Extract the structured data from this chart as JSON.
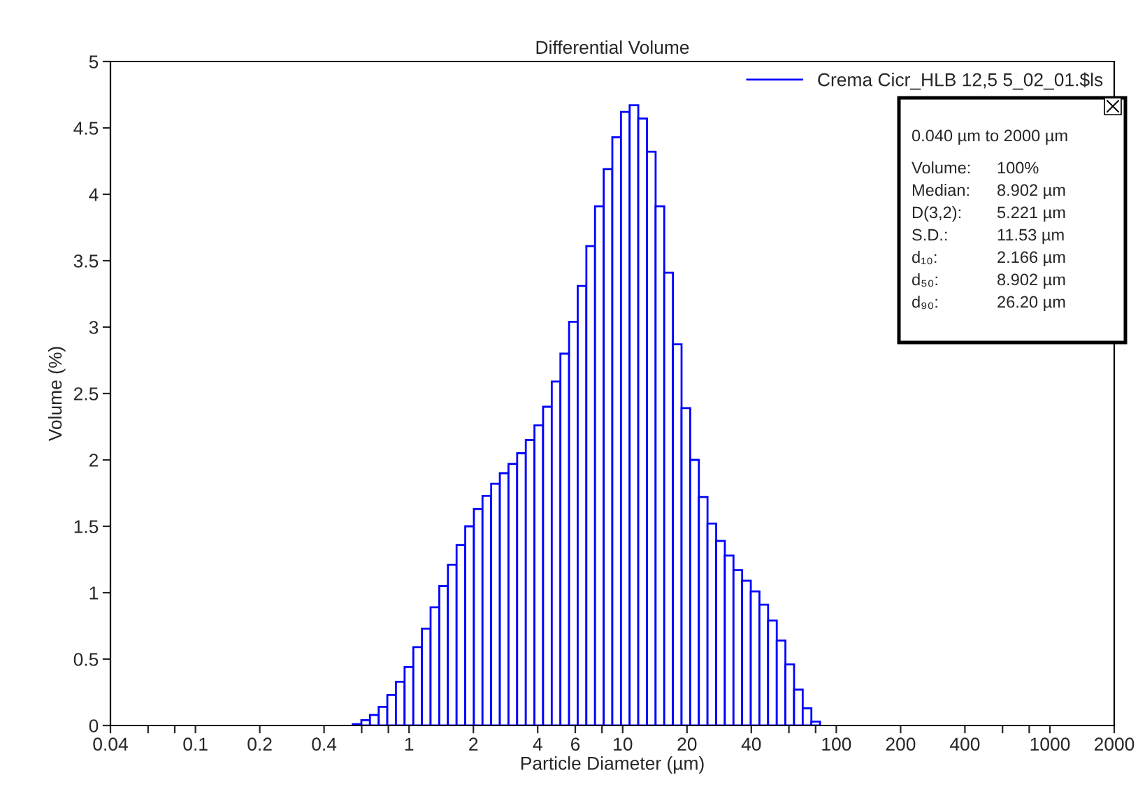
{
  "chart_data": {
    "type": "histogram",
    "title": "Differential Volume",
    "xlabel": "Particle Diameter (µm)",
    "ylabel": "Volume (%)",
    "bins": [
      0.545,
      0.598,
      0.656,
      0.721,
      0.791,
      0.868,
      0.953,
      1.047,
      1.149,
      1.261,
      1.385,
      1.52,
      1.669,
      1.832,
      2.011,
      2.207,
      2.423,
      2.66,
      2.92,
      3.206,
      3.519,
      3.863,
      4.241,
      4.656,
      5.111,
      5.611,
      6.159,
      6.761,
      7.422,
      8.148,
      8.944,
      9.819,
      10.78,
      11.83,
      12.99,
      14.26,
      15.65,
      17.18,
      18.86,
      20.71,
      22.73,
      24.95,
      27.39,
      30.07,
      33.01,
      36.24,
      39.78,
      43.67,
      47.94,
      52.63,
      57.77,
      63.42,
      69.62,
      76.43,
      83.9
    ],
    "series": [
      {
        "name": "Crema Cicr_HLB 12,5 5_02_01.$ls",
        "color": "#0000ff",
        "values": [
          0.01,
          0.04,
          0.08,
          0.14,
          0.23,
          0.33,
          0.44,
          0.59,
          0.73,
          0.89,
          1.05,
          1.21,
          1.36,
          1.5,
          1.63,
          1.73,
          1.82,
          1.9,
          1.97,
          2.05,
          2.15,
          2.26,
          2.4,
          2.59,
          2.8,
          3.04,
          3.31,
          3.61,
          3.91,
          4.19,
          4.43,
          4.62,
          4.67,
          4.57,
          4.32,
          3.91,
          3.41,
          2.87,
          2.39,
          2.0,
          1.72,
          1.52,
          1.39,
          1.28,
          1.17,
          1.09,
          1.01,
          0.91,
          0.79,
          0.64,
          0.46,
          0.27,
          0.13,
          0.03
        ]
      }
    ],
    "log": "x",
    "xlim": [
      0.04,
      2000
    ],
    "ylim": [
      0,
      5
    ],
    "xticks": [
      0.04,
      {
        "value": 0.06,
        "label": null
      },
      {
        "value": 0.08,
        "label": null
      },
      0.1,
      0.2,
      0.4,
      {
        "value": 0.6,
        "label": null
      },
      {
        "value": 0.8,
        "label": null
      },
      1,
      2,
      4,
      6,
      {
        "value": 8,
        "label": null
      },
      10,
      20,
      40,
      {
        "value": 60,
        "label": null
      },
      {
        "value": 80,
        "label": null
      },
      100,
      200,
      400,
      {
        "value": 600,
        "label": null
      },
      {
        "value": 800,
        "label": null
      },
      1000,
      2000
    ],
    "yticks": [
      0,
      0.5,
      1,
      1.5,
      2,
      2.5,
      3,
      3.5,
      4,
      4.5,
      5
    ],
    "grid": false,
    "legend": "top right",
    "annotations": [
      "0.040 µm to 2000 µm",
      "Volume:\t100%",
      "Median:\t8.902 µm",
      "D(3,2):\t5.221 µm",
      "S.D.:\t11.53 µm",
      "d₁₀:\t2.166 µm",
      "d₅₀:\t8.902 µm",
      "d₉₀:\t26.20 µm"
    ]
  }
}
